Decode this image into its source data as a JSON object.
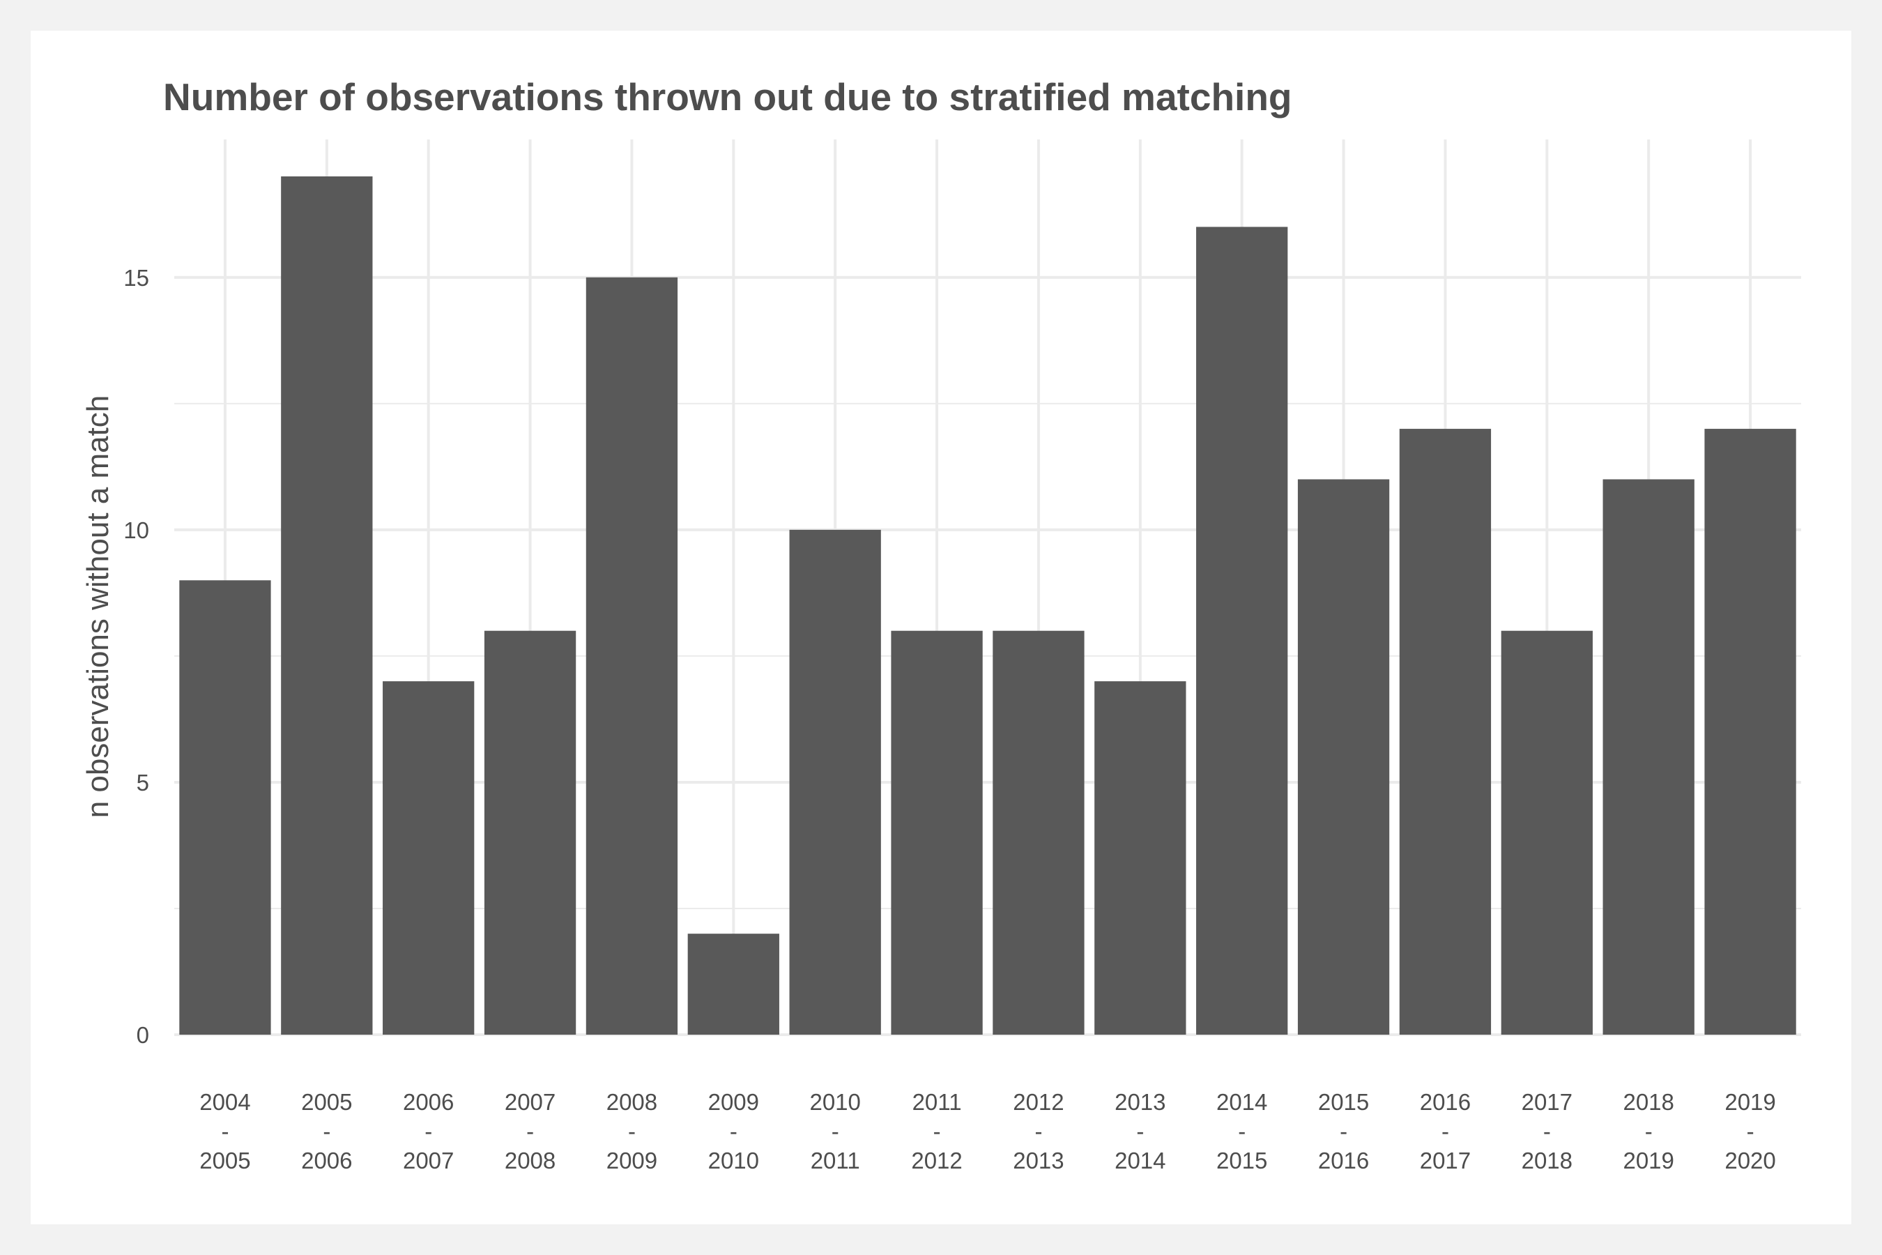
{
  "chart_data": {
    "type": "bar",
    "title": "Number of observations thrown out due to stratified matching",
    "xlabel": "",
    "ylabel": "n observations without a match",
    "categories": [
      [
        "2004",
        "-",
        "2005"
      ],
      [
        "2005",
        "-",
        "2006"
      ],
      [
        "2006",
        "-",
        "2007"
      ],
      [
        "2007",
        "-",
        "2008"
      ],
      [
        "2008",
        "-",
        "2009"
      ],
      [
        "2009",
        "-",
        "2010"
      ],
      [
        "2010",
        "-",
        "2011"
      ],
      [
        "2011",
        "-",
        "2012"
      ],
      [
        "2012",
        "-",
        "2013"
      ],
      [
        "2013",
        "-",
        "2014"
      ],
      [
        "2014",
        "-",
        "2015"
      ],
      [
        "2015",
        "-",
        "2016"
      ],
      [
        "2016",
        "-",
        "2017"
      ],
      [
        "2017",
        "-",
        "2018"
      ],
      [
        "2018",
        "-",
        "2019"
      ],
      [
        "2019",
        "-",
        "2020"
      ]
    ],
    "values": [
      9,
      17,
      7,
      8,
      15,
      2,
      10,
      8,
      8,
      7,
      16,
      11,
      12,
      8,
      11,
      12
    ],
    "ylim": [
      0,
      17
    ],
    "yticks": [
      0,
      5,
      10,
      15
    ],
    "grid": true,
    "legend": "none",
    "bar_color": "#595959",
    "grid_color": "#ebebeb",
    "text_color": "#4d4d4d"
  }
}
